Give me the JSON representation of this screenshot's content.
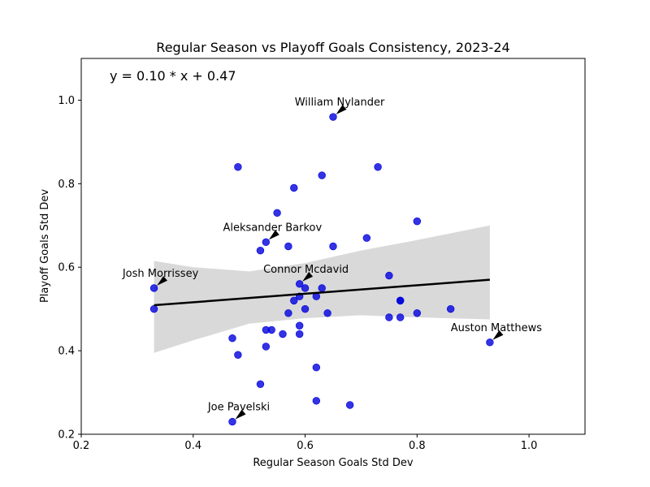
{
  "chart_data": {
    "type": "scatter",
    "title": "Regular Season vs Playoff Goals Consistency, 2023-24",
    "xlabel": "Regular Season Goals Std Dev",
    "ylabel": "Playoff Goals Std Dev",
    "xlim": [
      0.2,
      1.1
    ],
    "ylim": [
      0.2,
      1.1
    ],
    "xticks": [
      "0.2",
      "0.4",
      "0.6",
      "0.8",
      "1.0"
    ],
    "yticks": [
      "0.2",
      "0.4",
      "0.6",
      "0.8",
      "1.0"
    ],
    "xtick_values": [
      0.2,
      0.4,
      0.6,
      0.8,
      1.0
    ],
    "ytick_values": [
      0.2,
      0.4,
      0.6,
      0.8,
      1.0
    ],
    "grid": false,
    "equation": "y = 0.10 * x + 0.47",
    "point_color": "#0000dd",
    "regression_color": "#000000",
    "band_color": "#d9d9d9",
    "points": [
      {
        "x": 0.48,
        "y": 0.84
      },
      {
        "x": 0.73,
        "y": 0.84
      },
      {
        "x": 0.63,
        "y": 0.82
      },
      {
        "x": 0.58,
        "y": 0.79
      },
      {
        "x": 0.55,
        "y": 0.73
      },
      {
        "x": 0.8,
        "y": 0.71
      },
      {
        "x": 0.71,
        "y": 0.67
      },
      {
        "x": 0.57,
        "y": 0.65
      },
      {
        "x": 0.65,
        "y": 0.65
      },
      {
        "x": 0.52,
        "y": 0.64
      },
      {
        "x": 0.75,
        "y": 0.58
      },
      {
        "x": 0.33,
        "y": 0.55
      },
      {
        "x": 0.59,
        "y": 0.56
      },
      {
        "x": 0.6,
        "y": 0.55
      },
      {
        "x": 0.63,
        "y": 0.55
      },
      {
        "x": 0.59,
        "y": 0.53
      },
      {
        "x": 0.62,
        "y": 0.53
      },
      {
        "x": 0.58,
        "y": 0.52
      },
      {
        "x": 0.77,
        "y": 0.52
      },
      {
        "x": 0.77,
        "y": 0.52
      },
      {
        "x": 0.33,
        "y": 0.5
      },
      {
        "x": 0.6,
        "y": 0.5
      },
      {
        "x": 0.86,
        "y": 0.5
      },
      {
        "x": 0.57,
        "y": 0.49
      },
      {
        "x": 0.64,
        "y": 0.49
      },
      {
        "x": 0.8,
        "y": 0.49
      },
      {
        "x": 0.75,
        "y": 0.48
      },
      {
        "x": 0.77,
        "y": 0.48
      },
      {
        "x": 0.59,
        "y": 0.46
      },
      {
        "x": 0.53,
        "y": 0.45
      },
      {
        "x": 0.54,
        "y": 0.45
      },
      {
        "x": 0.56,
        "y": 0.44
      },
      {
        "x": 0.59,
        "y": 0.44
      },
      {
        "x": 0.47,
        "y": 0.43
      },
      {
        "x": 0.93,
        "y": 0.42
      },
      {
        "x": 0.53,
        "y": 0.41
      },
      {
        "x": 0.48,
        "y": 0.39
      },
      {
        "x": 0.62,
        "y": 0.36
      },
      {
        "x": 0.52,
        "y": 0.32
      },
      {
        "x": 0.62,
        "y": 0.28
      },
      {
        "x": 0.68,
        "y": 0.27
      },
      {
        "x": 0.47,
        "y": 0.23
      },
      {
        "x": 0.65,
        "y": 0.96
      },
      {
        "x": 0.53,
        "y": 0.66
      }
    ],
    "annotations": [
      {
        "text": "William Nylander",
        "x": 0.65,
        "y": 0.96
      },
      {
        "text": "Aleksander Barkov",
        "x": 0.53,
        "y": 0.66
      },
      {
        "text": "Josh Morrissey",
        "x": 0.33,
        "y": 0.55
      },
      {
        "text": "Connor Mcdavid",
        "x": 0.59,
        "y": 0.56
      },
      {
        "text": "Auston Matthews",
        "x": 0.93,
        "y": 0.42
      },
      {
        "text": "Joe Pavelski",
        "x": 0.47,
        "y": 0.23
      }
    ],
    "regression": {
      "x": [
        0.33,
        0.93
      ],
      "y": [
        0.509,
        0.57
      ]
    },
    "confidence_band": {
      "x": [
        0.33,
        0.4,
        0.5,
        0.6,
        0.7,
        0.8,
        0.93
      ],
      "upper": [
        0.615,
        0.6,
        0.59,
        0.61,
        0.64,
        0.665,
        0.7
      ],
      "lower": [
        0.395,
        0.425,
        0.465,
        0.478,
        0.485,
        0.48,
        0.475
      ]
    }
  }
}
